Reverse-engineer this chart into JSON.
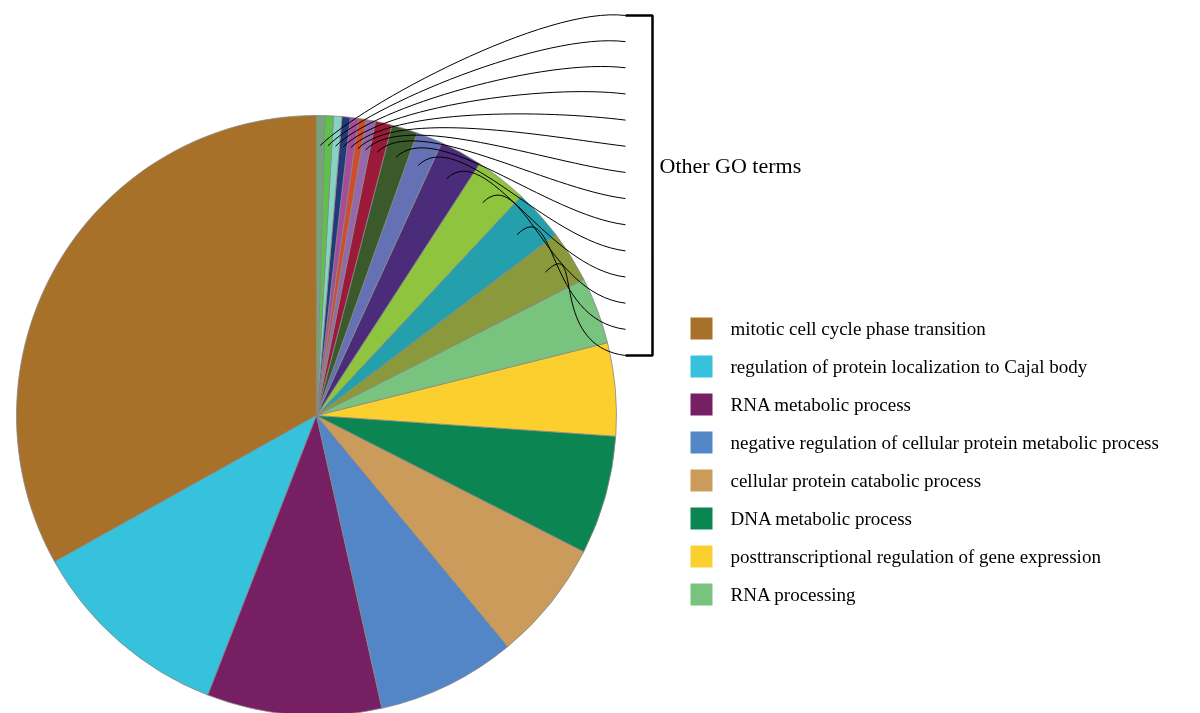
{
  "chart_data": {
    "type": "pie",
    "categories": [
      "mitotic cell cycle phase transition",
      "regulation of protein localization to Cajal body",
      "RNA metabolic process",
      "negative regulation of cellular protein metabolic process",
      "cellular protein catabolic process",
      "DNA metabolic process",
      "posttranscriptional regulation of gene expression",
      "RNA processing",
      null,
      null,
      null,
      null,
      null,
      null,
      null,
      null,
      null,
      null,
      null,
      null,
      null,
      null
    ],
    "values": [
      33.1,
      11,
      9.4,
      7.5,
      6.5,
      6.4,
      5.0,
      3.6,
      2.8,
      2.75,
      2.8,
      2.3,
      1.4,
      1.4,
      0.9,
      0.5,
      0.4,
      0.45,
      0.45,
      0.45,
      0.45,
      0.45
    ],
    "colors": [
      "#a8712a",
      "#36c1dc",
      "#771f63",
      "#5286c6",
      "#cb9b5b",
      "#0b8552",
      "#fbd02e",
      "#78c37d",
      "#8b993d",
      "#24a0ac",
      "#8fc43e",
      "#4a2c7a",
      "#6571b5",
      "#3b5a2b",
      "#9b1a3a",
      "#9468ab",
      "#d04c2a",
      "#a54c9d",
      "#24397a",
      "#86d3c3",
      "#5ec24a",
      "#76a47a"
    ],
    "annotations": [
      "Other GO terms"
    ],
    "legend": "right"
  }
}
